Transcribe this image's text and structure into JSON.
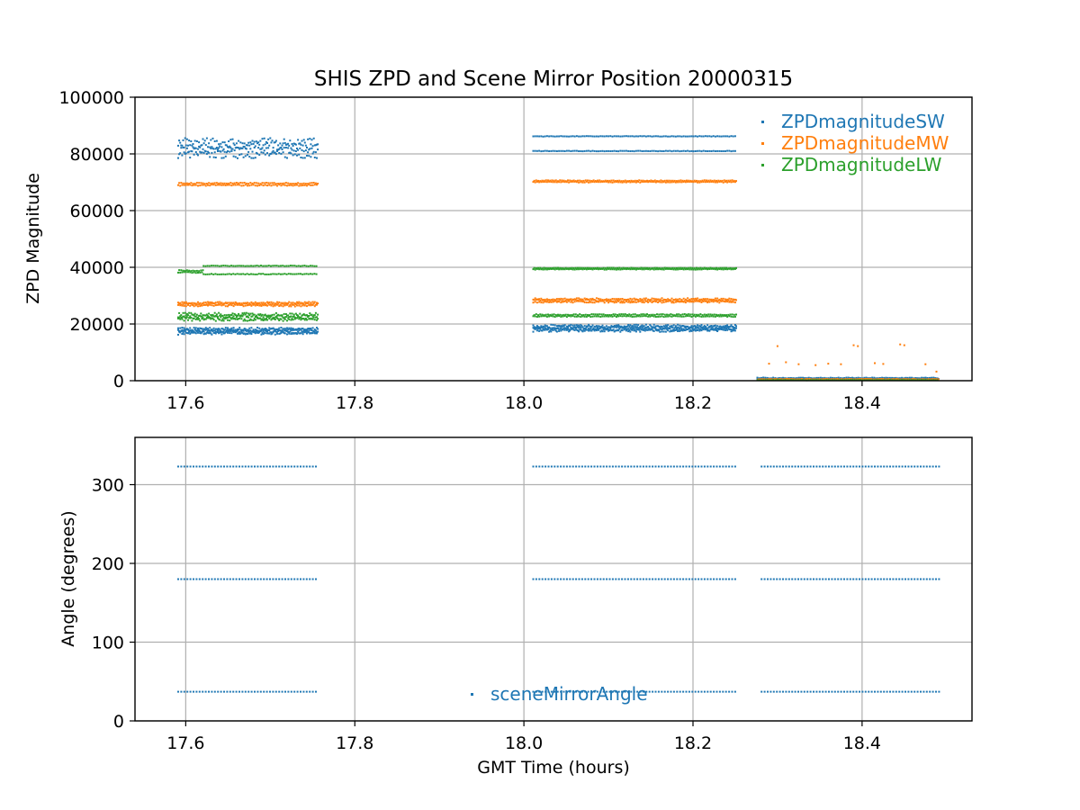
{
  "figure_title": "SHIS ZPD and Scene Mirror Position 20000315",
  "colors": {
    "sw": "#1f77b4",
    "mw": "#ff7f0e",
    "lw": "#2ca02c",
    "angle": "#1f77b4",
    "grid": "#b0b0b0"
  },
  "chart_data": [
    {
      "type": "scatter",
      "title": "SHIS ZPD and Scene Mirror Position 20000315",
      "xlabel": "",
      "ylabel": "ZPD Magnitude",
      "xlim": [
        17.54,
        18.53
      ],
      "ylim": [
        0,
        100000
      ],
      "x_ticks": [
        17.6,
        17.8,
        18.0,
        18.2,
        18.4
      ],
      "x_tick_labels": [
        "17.6",
        "17.8",
        "18.0",
        "18.2",
        "18.4"
      ],
      "y_ticks": [
        0,
        20000,
        40000,
        60000,
        80000,
        100000
      ],
      "y_tick_labels": [
        "0",
        "20000",
        "40000",
        "60000",
        "80000",
        "100000"
      ],
      "grid": true,
      "legend_position": "top-right",
      "series": [
        {
          "name": "ZPDmagnitudeSW",
          "color": "#1f77b4",
          "bands": [
            {
              "x_start": 17.59,
              "x_end": 17.755,
              "y": 17500,
              "spread": 1600,
              "rows": 5
            },
            {
              "x_start": 17.59,
              "x_end": 17.755,
              "y": 82000,
              "spread": 4500,
              "rows": 4
            },
            {
              "x_start": 18.01,
              "x_end": 18.25,
              "y": 18500,
              "spread": 1600,
              "rows": 5
            },
            {
              "x_start": 18.01,
              "x_end": 18.25,
              "y": 86200,
              "spread": 300,
              "rows": 1
            },
            {
              "x_start": 18.01,
              "x_end": 18.25,
              "y": 81000,
              "spread": 300,
              "rows": 1
            },
            {
              "x_start": 18.275,
              "x_end": 18.49,
              "y": 700,
              "spread": 500,
              "rows": 3
            }
          ]
        },
        {
          "name": "ZPDmagnitudeMW",
          "color": "#ff7f0e",
          "bands": [
            {
              "x_start": 17.59,
              "x_end": 17.755,
              "y": 27000,
              "spread": 1000,
              "rows": 3
            },
            {
              "x_start": 17.59,
              "x_end": 17.755,
              "y": 69300,
              "spread": 700,
              "rows": 2
            },
            {
              "x_start": 18.01,
              "x_end": 18.25,
              "y": 28300,
              "spread": 1000,
              "rows": 3
            },
            {
              "x_start": 18.01,
              "x_end": 18.25,
              "y": 70300,
              "spread": 500,
              "rows": 2
            },
            {
              "x_start": 18.275,
              "x_end": 18.49,
              "y": 400,
              "spread": 300,
              "rows": 2
            }
          ],
          "outliers": [
            [
              18.29,
              6000
            ],
            [
              18.3,
              12200
            ],
            [
              18.31,
              6500
            ],
            [
              18.325,
              5800
            ],
            [
              18.345,
              5500
            ],
            [
              18.36,
              6000
            ],
            [
              18.375,
              5800
            ],
            [
              18.39,
              12500
            ],
            [
              18.395,
              12200
            ],
            [
              18.415,
              6200
            ],
            [
              18.425,
              5900
            ],
            [
              18.445,
              12800
            ],
            [
              18.45,
              12500
            ],
            [
              18.475,
              5800
            ],
            [
              18.488,
              3200
            ]
          ]
        },
        {
          "name": "ZPDmagnitudeLW",
          "color": "#2ca02c",
          "bands": [
            {
              "x_start": 17.59,
              "x_end": 17.755,
              "y": 22500,
              "spread": 1800,
              "rows": 4
            },
            {
              "x_start": 17.59,
              "x_end": 17.62,
              "y": 38500,
              "spread": 700,
              "rows": 2
            },
            {
              "x_start": 17.62,
              "x_end": 17.755,
              "y": 40500,
              "spread": 400,
              "rows": 1
            },
            {
              "x_start": 17.62,
              "x_end": 17.755,
              "y": 37600,
              "spread": 400,
              "rows": 1
            },
            {
              "x_start": 18.01,
              "x_end": 18.25,
              "y": 23000,
              "spread": 600,
              "rows": 2
            },
            {
              "x_start": 18.01,
              "x_end": 18.25,
              "y": 39500,
              "spread": 400,
              "rows": 2
            },
            {
              "x_start": 18.275,
              "x_end": 18.49,
              "y": 200,
              "spread": 200,
              "rows": 1
            }
          ]
        }
      ]
    },
    {
      "type": "scatter",
      "title": "",
      "xlabel": "GMT Time (hours)",
      "ylabel": "Angle (degrees)",
      "xlim": [
        17.54,
        18.53
      ],
      "ylim": [
        0,
        360
      ],
      "x_ticks": [
        17.6,
        17.8,
        18.0,
        18.2,
        18.4
      ],
      "x_tick_labels": [
        "17.6",
        "17.8",
        "18.0",
        "18.2",
        "18.4"
      ],
      "y_ticks": [
        0,
        100,
        200,
        300
      ],
      "y_tick_labels": [
        "0",
        "100",
        "200",
        "300"
      ],
      "grid": true,
      "legend_position": "bottom-center",
      "series": [
        {
          "name": "sceneMirrorAngle",
          "color": "#1f77b4",
          "bands": [
            {
              "x_start": 17.59,
              "x_end": 17.755,
              "y": 323,
              "spread": 0,
              "rows": 1
            },
            {
              "x_start": 17.59,
              "x_end": 17.755,
              "y": 180,
              "spread": 0,
              "rows": 1
            },
            {
              "x_start": 17.59,
              "x_end": 17.755,
              "y": 37,
              "spread": 0,
              "rows": 1
            },
            {
              "x_start": 18.01,
              "x_end": 18.25,
              "y": 323,
              "spread": 0,
              "rows": 1
            },
            {
              "x_start": 18.01,
              "x_end": 18.25,
              "y": 180,
              "spread": 0,
              "rows": 1
            },
            {
              "x_start": 18.01,
              "x_end": 18.25,
              "y": 37,
              "spread": 0,
              "rows": 1
            },
            {
              "x_start": 18.28,
              "x_end": 18.49,
              "y": 323,
              "spread": 0,
              "rows": 1
            },
            {
              "x_start": 18.28,
              "x_end": 18.49,
              "y": 180,
              "spread": 0,
              "rows": 1
            },
            {
              "x_start": 18.28,
              "x_end": 18.49,
              "y": 37,
              "spread": 0,
              "rows": 1
            }
          ]
        }
      ]
    }
  ]
}
